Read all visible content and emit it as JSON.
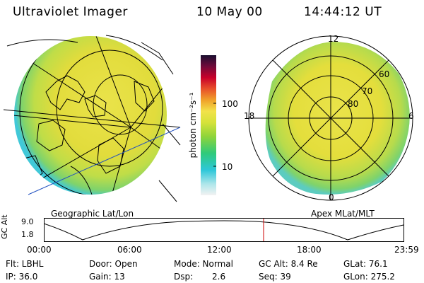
{
  "header": {
    "instrument": "Ultraviolet Imager",
    "date": "10 May 00",
    "time": "14:44:12 UT"
  },
  "left_panel": {
    "caption": "Geographic Lat/Lon"
  },
  "right_panel": {
    "caption": "Apex MLat/MLT",
    "mlt_labels": {
      "top": "12",
      "left": "18",
      "right": "6",
      "bottom": "0"
    },
    "lat_labels": [
      "60",
      "70",
      "80"
    ]
  },
  "colorbar": {
    "unit_label": "photon cm⁻²s⁻¹",
    "ticks": [
      "100",
      "10"
    ],
    "scale": "log"
  },
  "altitude_plot": {
    "ylabel": "GC Alt",
    "yticks": [
      "9.0",
      "1.8"
    ],
    "xticks": [
      "00:00",
      "06:00",
      "12:00",
      "18:00",
      "23:59"
    ],
    "current_time_marker": "14:44"
  },
  "footer": {
    "row1": {
      "flt": "Flt: LBHL",
      "door": "Door: Open",
      "mode": "Mode: Normal",
      "gcalt": "GC Alt: 8.4 Re",
      "glat": "GLat:  76.1"
    },
    "row2": {
      "ip": "IP: 36.0",
      "gain": "Gain: 13",
      "dsp_label": "Dsp:",
      "dsp_value": "2.6",
      "seq": "Seq: 39",
      "glon": "GLon: 275.2"
    }
  },
  "colors": {
    "aurora_main": "#e6e23a",
    "aurora_edge": "#7fd36b",
    "aurora_fringe": "#41c8d8",
    "marker": "#cc0000"
  }
}
